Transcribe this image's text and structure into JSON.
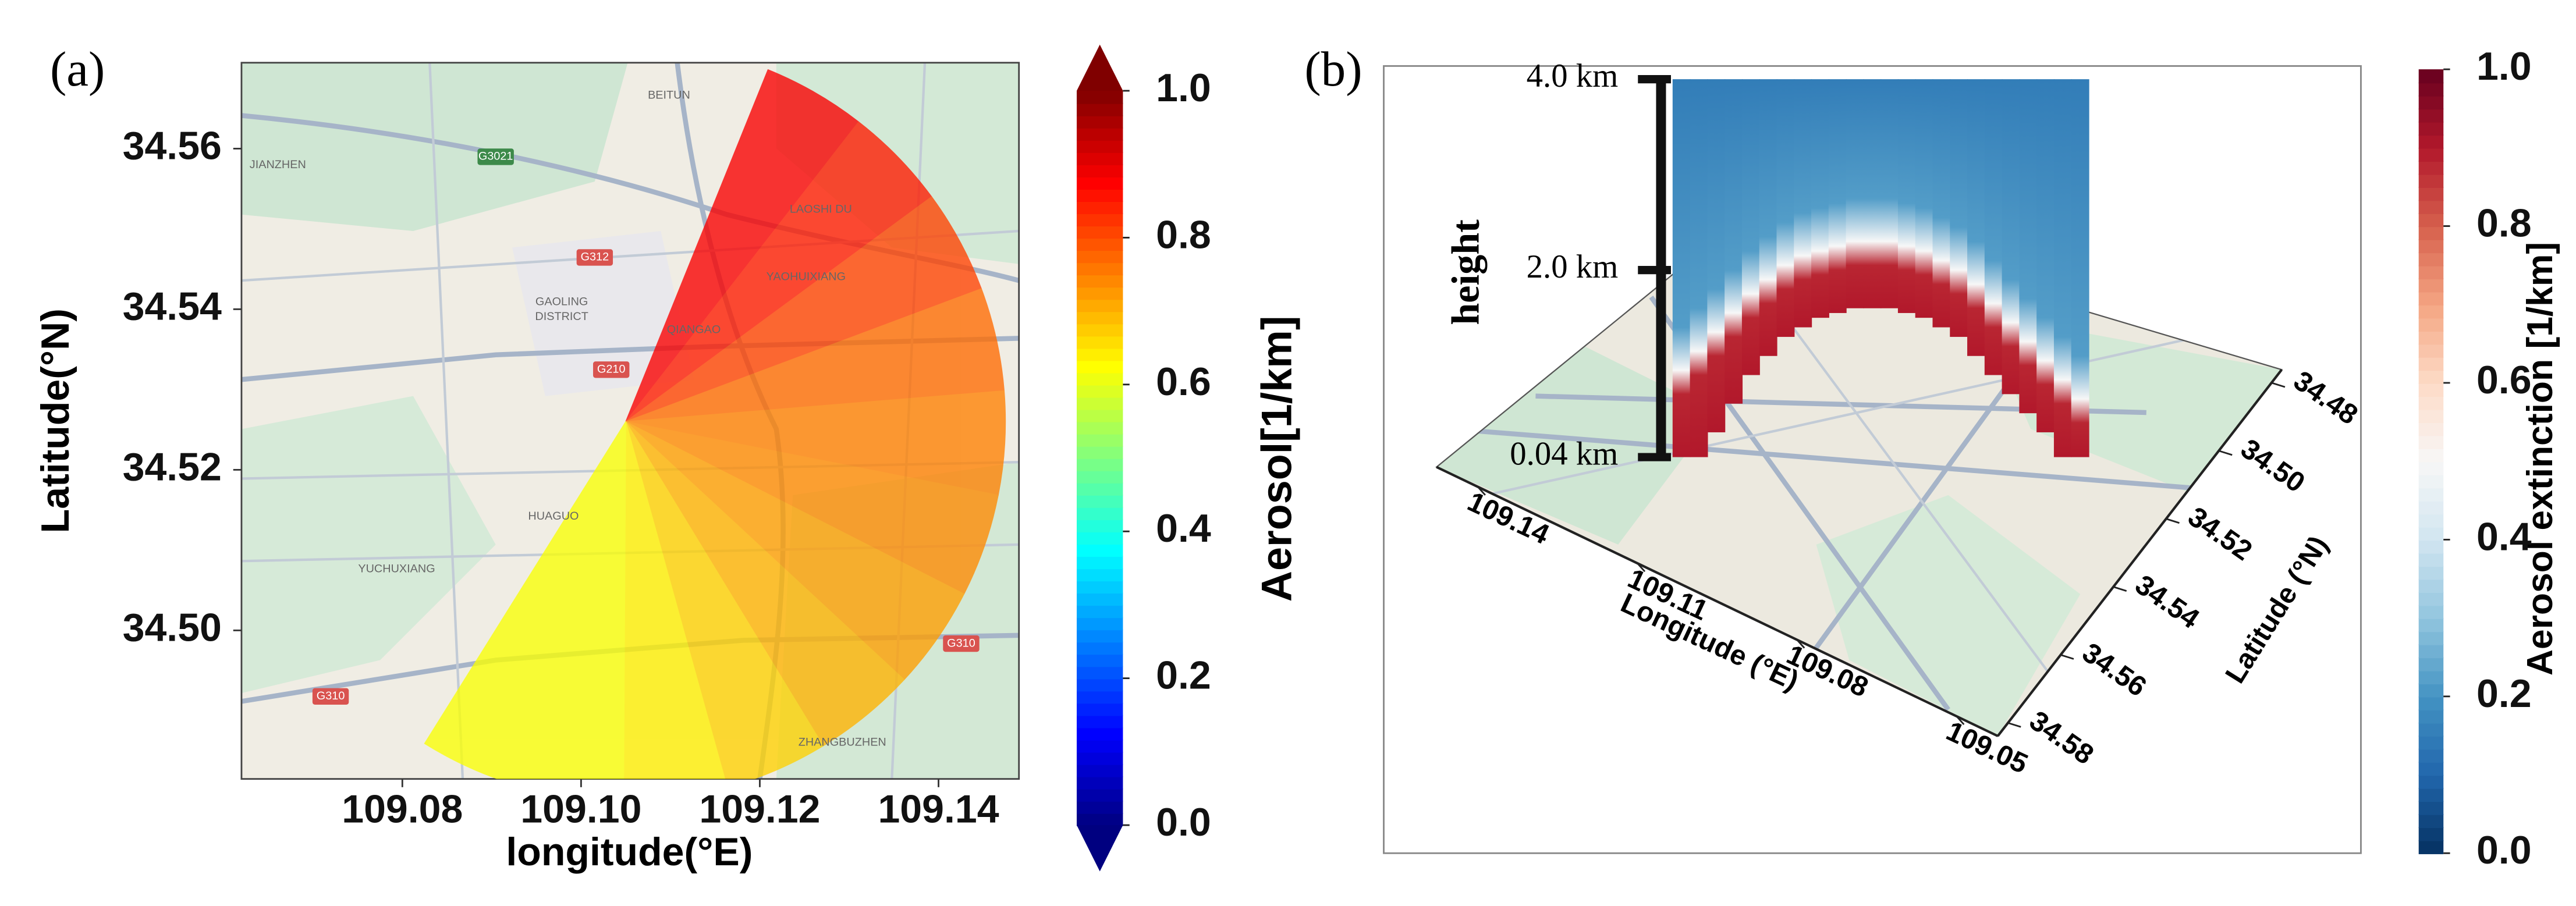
{
  "chart_data": [
    {
      "type": "sector",
      "panel_label": "(a)",
      "xlabel": "longitude(°E)",
      "ylabel": "Latitude(°N)",
      "xlim": [
        109.062,
        109.149
      ],
      "ylim": [
        34.4815,
        34.5707
      ],
      "xticks": [
        109.08,
        {
          "value": 109.1,
          "label": "109.10"
        },
        109.12,
        109.14
      ],
      "yticks": [
        {
          "value": 34.5,
          "label": "34.50"
        },
        34.52,
        34.54,
        34.56
      ],
      "center": [
        109.105,
        34.526
      ],
      "values": [
        0.88,
        0.85,
        0.81,
        0.77,
        0.75,
        0.74,
        0.72,
        0.7,
        0.67,
        0.64,
        0.62,
        0.62
      ],
      "colormap": "jet",
      "colorbar": {
        "label": "Aerosol[1/km]",
        "lim": [
          0,
          1
        ],
        "ticks": [
          {
            "value": 0,
            "label": "0.0"
          },
          0.2,
          0.4,
          0.6,
          0.8,
          {
            "value": 1,
            "label": "1.0"
          }
        ],
        "extend": "both"
      },
      "map_labels": [
        "BEITUN",
        "JIANZHEN",
        "G3021",
        "LAOSHI DU",
        "G312",
        "YAOHUIXIANG",
        "GAOLING",
        "DISTRICT",
        "QIANGAO",
        "G210",
        "HUAGUO",
        "YUCHUXIANG",
        "G310",
        "G310",
        "ZHANGBUZHEN"
      ]
    },
    {
      "type": "curtain3d",
      "panel_label": "(b)",
      "xlabel": "Longitude (°E)",
      "ylabel": "Latitude (°N)",
      "zlabel": "height",
      "xticks": [
        109.14,
        109.11,
        109.08,
        109.05
      ],
      "yticks": [
        34.48,
        {
          "value": 34.5,
          "label": "34.50"
        },
        34.52,
        34.54,
        34.56,
        34.58
      ],
      "zlim": [
        0.04,
        4
      ],
      "zticks": [
        {
          "value": 0.04,
          "label": "0.04 km"
        },
        {
          "value": 2,
          "label": "2.0 km"
        },
        {
          "value": 4,
          "label": "4.0 km"
        }
      ],
      "layer_bottom": [
        0.04,
        0.04,
        0.3,
        0.6,
        0.9,
        1.1,
        1.3,
        1.4,
        1.5,
        1.55,
        1.6,
        1.6,
        1.6,
        1.55,
        1.5,
        1.4,
        1.3,
        1.1,
        0.9,
        0.7,
        0.5,
        0.3,
        0.04,
        0.04
      ],
      "layer_top": [
        0.9,
        1.1,
        1.3,
        1.5,
        1.7,
        1.85,
        2.0,
        2.1,
        2.15,
        2.2,
        2.25,
        2.25,
        2.25,
        2.2,
        2.15,
        2.05,
        1.95,
        1.8,
        1.6,
        1.4,
        1.2,
        1.0,
        0.8,
        0.6
      ],
      "colormap": "RdBu_r",
      "colorbar": {
        "label": "Aerosol extinction [1/km]",
        "lim": [
          0,
          1
        ],
        "ticks": [
          {
            "value": 0,
            "label": "0.0"
          },
          0.2,
          0.4,
          0.6,
          0.8,
          {
            "value": 1,
            "label": "1.0"
          }
        ]
      }
    }
  ]
}
